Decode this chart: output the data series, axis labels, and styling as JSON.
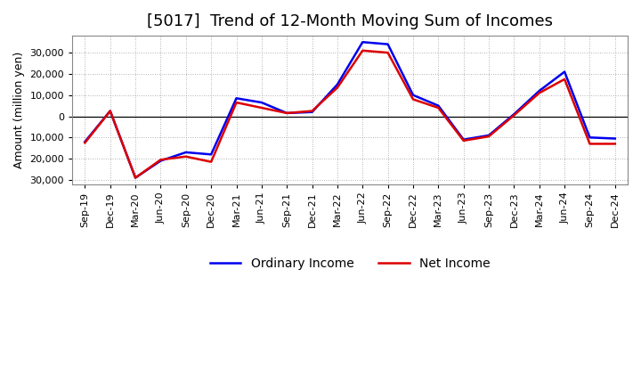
{
  "title": "[5017]  Trend of 12-Month Moving Sum of Incomes",
  "ylabel": "Amount (million yen)",
  "x_labels": [
    "Sep-19",
    "Dec-19",
    "Mar-20",
    "Jun-20",
    "Sep-20",
    "Dec-20",
    "Mar-21",
    "Jun-21",
    "Sep-21",
    "Dec-21",
    "Mar-22",
    "Jun-22",
    "Sep-22",
    "Dec-22",
    "Mar-23",
    "Jun-23",
    "Sep-23",
    "Dec-23",
    "Mar-24",
    "Jun-24",
    "Sep-24",
    "Dec-24"
  ],
  "ordinary_income": [
    -12000,
    2500,
    -29000,
    -21000,
    -17000,
    -18000,
    8500,
    6500,
    1500,
    2000,
    15000,
    35000,
    34000,
    10000,
    5000,
    -11000,
    -9000,
    1000,
    12000,
    21000,
    -10000,
    -10500
  ],
  "net_income": [
    -12500,
    2500,
    -29000,
    -20500,
    -19000,
    -21500,
    6500,
    4000,
    1500,
    2500,
    13500,
    31000,
    30000,
    8000,
    4000,
    -11500,
    -9500,
    500,
    11000,
    17500,
    -13000,
    -13000
  ],
  "ordinary_color": "#0000ee",
  "net_color": "#dd0000",
  "ylim": [
    -32000,
    38000
  ],
  "yticks": [
    -30000,
    -20000,
    -10000,
    0,
    10000,
    20000,
    30000
  ],
  "grid_color": "#999999",
  "bg_color": "#ffffff",
  "plot_bg_color": "#ffffff",
  "title_fontsize": 13,
  "axis_label_fontsize": 9,
  "tick_fontsize": 8,
  "legend_fontsize": 10,
  "line_width": 1.8
}
